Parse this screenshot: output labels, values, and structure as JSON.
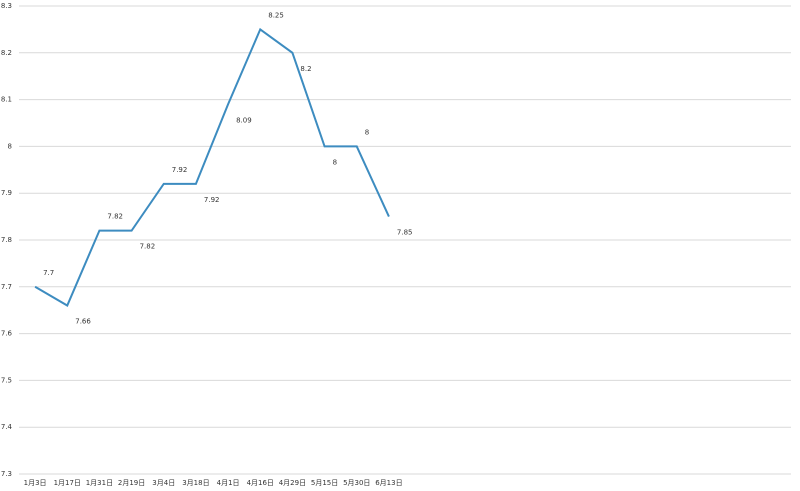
{
  "chart_data": {
    "type": "line",
    "categories": [
      "1月3日",
      "1月17日",
      "1月31日",
      "2月19日",
      "3月4日",
      "3月18日",
      "4月1日",
      "4月16日",
      "4月29日",
      "5月15日",
      "5月30日",
      "6月13日",
      null,
      null,
      null,
      null,
      null,
      null,
      null,
      null,
      null,
      null,
      null,
      null
    ],
    "values": [
      7.7,
      7.66,
      7.82,
      7.82,
      7.92,
      7.92,
      8.09,
      8.25,
      8.2,
      8,
      8,
      7.85,
      null,
      null,
      null,
      null,
      null,
      null,
      null,
      null,
      null,
      null,
      null,
      null
    ],
    "color": "#3d8cc0",
    "ylim": [
      7.3,
      8.3
    ],
    "yticks": [
      7.3,
      7.4,
      7.5,
      7.6,
      7.7,
      7.8,
      7.9,
      8,
      8.1,
      8.2,
      8.3
    ],
    "grid": true
  }
}
